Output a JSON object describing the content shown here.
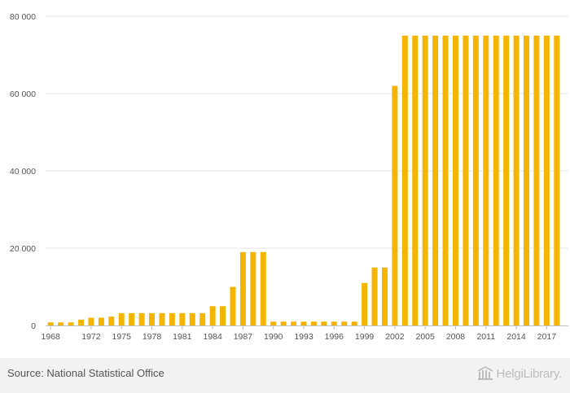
{
  "chart_data": {
    "type": "bar",
    "title": "",
    "xlabel": "",
    "ylabel": "",
    "ylim": [
      0,
      80000
    ],
    "y_ticks": [
      0,
      20000,
      40000,
      60000,
      80000
    ],
    "y_tick_labels": [
      "0",
      "20 000",
      "40 000",
      "60 000",
      "80 000"
    ],
    "x_tick_labels": [
      "1968",
      "1972",
      "1975",
      "1978",
      "1981",
      "1984",
      "1987",
      "1990",
      "1993",
      "1996",
      "1999",
      "2002",
      "2005",
      "2008",
      "2011",
      "2014",
      "2017"
    ],
    "grid": true,
    "bar_color": "#f5b400",
    "categories": [
      1968,
      1969,
      1970,
      1971,
      1972,
      1973,
      1974,
      1975,
      1976,
      1977,
      1978,
      1979,
      1980,
      1981,
      1982,
      1983,
      1984,
      1985,
      1986,
      1987,
      1988,
      1989,
      1990,
      1991,
      1992,
      1993,
      1994,
      1995,
      1996,
      1997,
      1998,
      1999,
      2000,
      2001,
      2002,
      2003,
      2004,
      2005,
      2006,
      2007,
      2008,
      2009,
      2010,
      2011,
      2012,
      2013,
      2014,
      2015,
      2016,
      2017,
      2018
    ],
    "values": [
      800,
      800,
      800,
      1500,
      2000,
      2000,
      2300,
      3200,
      3200,
      3200,
      3200,
      3200,
      3200,
      3200,
      3200,
      3200,
      5000,
      5000,
      10000,
      19000,
      19000,
      19000,
      1000,
      1000,
      1000,
      1000,
      1000,
      1000,
      1000,
      1000,
      1000,
      11000,
      15000,
      15000,
      62000,
      75000,
      75000,
      75000,
      75000,
      75000,
      75000,
      75000,
      75000,
      75000,
      75000,
      75000,
      75000,
      75000,
      75000,
      75000,
      75000
    ]
  },
  "footer": {
    "source": "Source: National Statistical Office",
    "logo_text": "HelgiLibrary."
  }
}
